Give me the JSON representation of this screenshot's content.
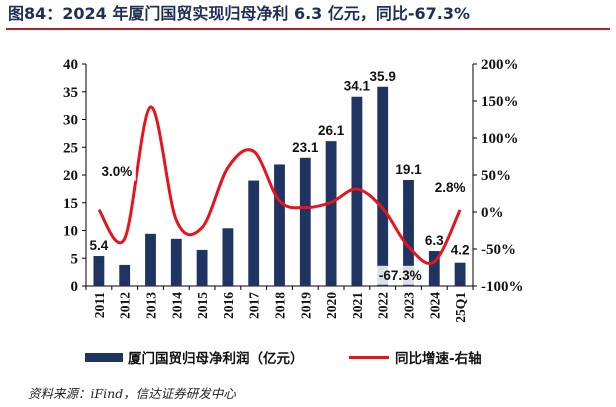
{
  "title": "图84：2024 年厦门国贸实现归母净利 6.3 亿元，同比-67.3%",
  "source": "资料来源：iFind，信达证券研发中心",
  "colors": {
    "bar": "#1f3461",
    "line": "#e8141c",
    "title": "#1f2f55",
    "rule": "#b81f24"
  },
  "chart_data": {
    "type": "bar",
    "categories": [
      "2011",
      "2012",
      "2013",
      "2014",
      "2015",
      "2016",
      "2017",
      "2018",
      "2019",
      "2020",
      "2021",
      "2022",
      "2023",
      "2024",
      "25Q1"
    ],
    "series": [
      {
        "name": "厦门国贸归母净利润（亿元）",
        "type": "bar",
        "axis": "left",
        "values": [
          5.4,
          3.8,
          9.4,
          8.5,
          6.5,
          10.4,
          19.0,
          21.9,
          23.1,
          26.1,
          34.1,
          35.9,
          19.1,
          6.3,
          4.2
        ]
      },
      {
        "name": "同比增速-右轴",
        "type": "line",
        "axis": "right",
        "values": [
          3.0,
          -36,
          142,
          -11,
          -21,
          60,
          82,
          15,
          6,
          13,
          31,
          5,
          -47,
          -67.3,
          2.8
        ]
      }
    ],
    "left_axis": {
      "ylim": [
        0,
        40
      ],
      "ticks": [
        "0",
        "5",
        "10",
        "15",
        "20",
        "25",
        "30",
        "35",
        "40"
      ]
    },
    "right_axis": {
      "ylim": [
        -100,
        200
      ],
      "ticks": [
        "-100%",
        "-50%",
        "0%",
        "50%",
        "100%",
        "150%",
        "200%"
      ]
    },
    "bar_labels": [
      {
        "index": 0,
        "text": "5.4"
      },
      {
        "index": 8,
        "text": "23.1"
      },
      {
        "index": 9,
        "text": "26.1"
      },
      {
        "index": 10,
        "text": "34.1"
      },
      {
        "index": 11,
        "text": "35.9"
      },
      {
        "index": 12,
        "text": "19.1"
      },
      {
        "index": 13,
        "text": "6.3"
      },
      {
        "index": 14,
        "text": "4.2"
      }
    ],
    "line_labels": [
      {
        "index": 0,
        "text": "3.0%"
      },
      {
        "index": 13,
        "text": "-67.3%"
      },
      {
        "index": 14,
        "text": "2.8%"
      }
    ],
    "legend_position": "bottom",
    "grid": false
  }
}
